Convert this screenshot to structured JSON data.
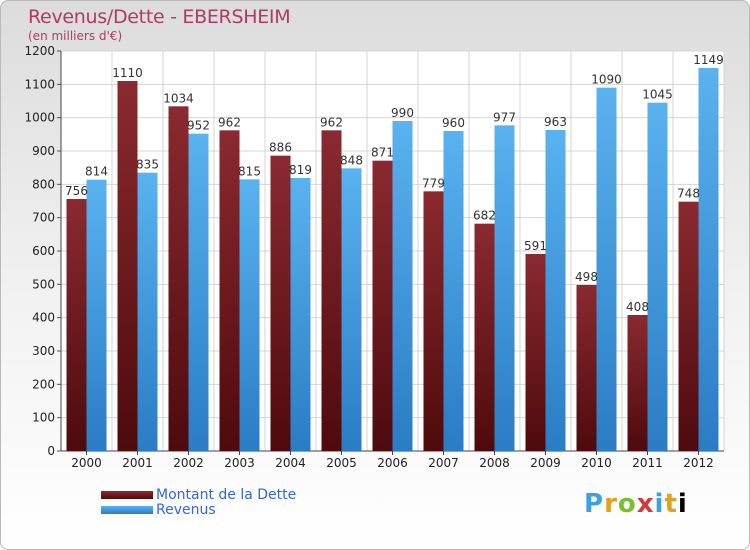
{
  "header": {
    "title": "Revenus/Dette - EBERSHEIM",
    "subtitle": "(en milliers d'€)"
  },
  "legend": {
    "debt_label": "Montant de la Dette",
    "revenue_label": "Revenus"
  },
  "brand": {
    "letters": [
      "P",
      "r",
      "o",
      "x",
      "i",
      "t",
      "i"
    ]
  },
  "colors": {
    "debt": "#7a1f25",
    "debt_dark": "#5a0f12",
    "revenue": "#4aa3e6",
    "revenue_dark": "#2a80c8",
    "title": "#b13a66",
    "legend_text": "#3366dd"
  },
  "chart_data": {
    "type": "bar",
    "title": "Revenus/Dette - EBERSHEIM",
    "subtitle": "(en milliers d'€)",
    "categories": [
      "2000",
      "2001",
      "2002",
      "2003",
      "2004",
      "2005",
      "2006",
      "2007",
      "2008",
      "2009",
      "2010",
      "2011",
      "2012"
    ],
    "series": [
      {
        "name": "Montant de la Dette",
        "values": [
          756,
          1110,
          1034,
          962,
          886,
          962,
          871,
          779,
          682,
          591,
          498,
          408,
          748
        ]
      },
      {
        "name": "Revenus",
        "values": [
          814,
          835,
          952,
          815,
          819,
          848,
          990,
          960,
          977,
          963,
          1090,
          1045,
          1149
        ]
      }
    ],
    "yticks": [
      0,
      100,
      200,
      300,
      400,
      500,
      600,
      700,
      800,
      900,
      1000,
      1100,
      1200
    ],
    "ylim": [
      0,
      1200
    ],
    "grid": true,
    "legend_position": "bottom-left"
  }
}
